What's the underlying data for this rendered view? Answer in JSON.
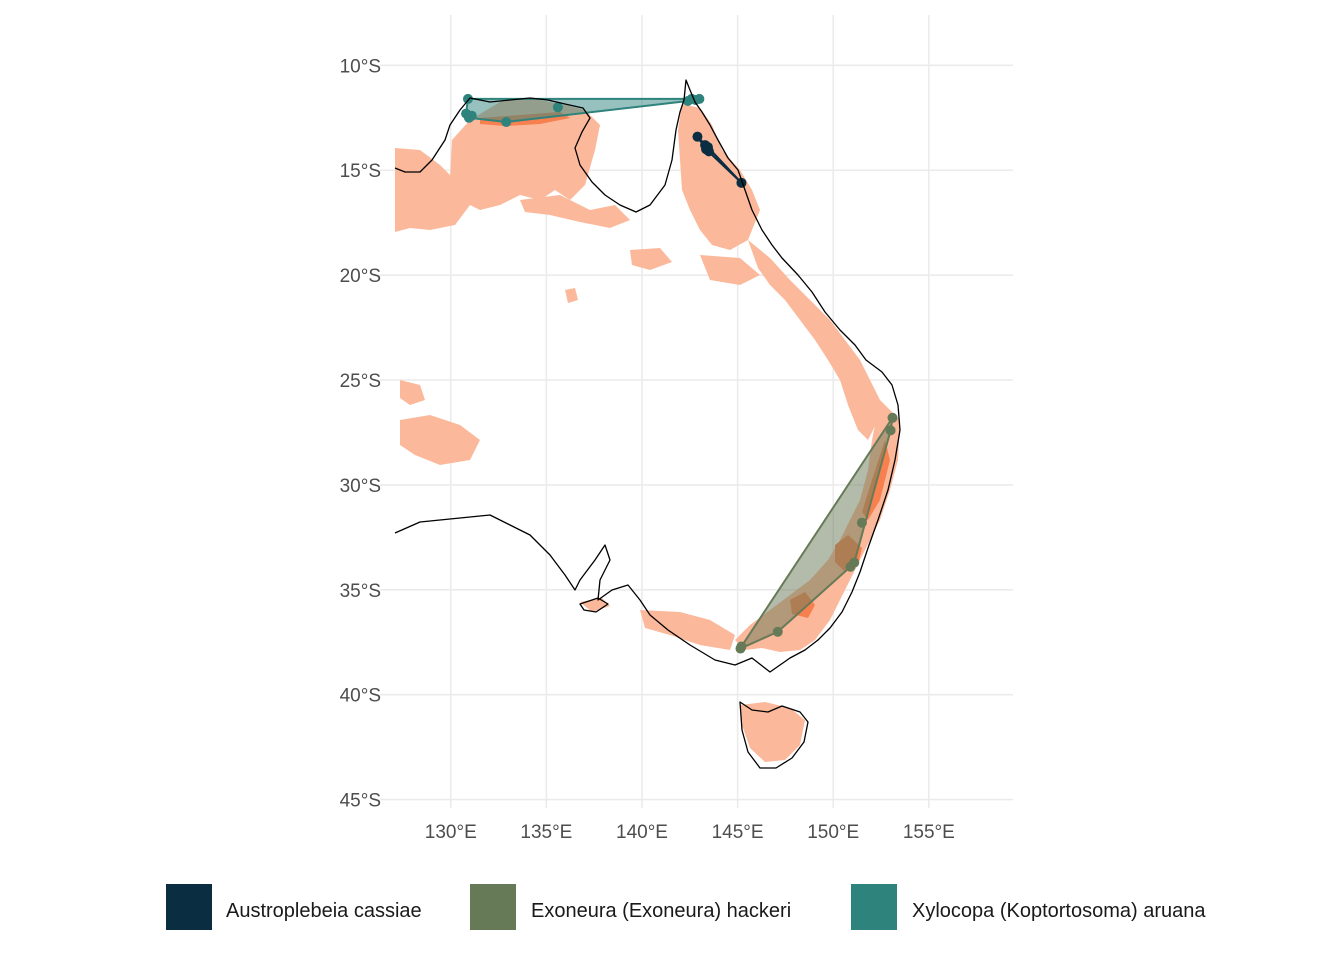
{
  "map": {
    "extent": {
      "lon_min": 126.3,
      "lon_max": 159.4,
      "lat_min": -45.4,
      "lat_max": -7.6
    },
    "x_ticks": [
      {
        "value": 130,
        "label": "130°E"
      },
      {
        "value": 135,
        "label": "135°E"
      },
      {
        "value": 140,
        "label": "140°E"
      },
      {
        "value": 145,
        "label": "145°E"
      },
      {
        "value": 150,
        "label": "150°E"
      },
      {
        "value": 155,
        "label": "155°E"
      }
    ],
    "y_ticks": [
      {
        "value": -10,
        "label": "10°S"
      },
      {
        "value": -15,
        "label": "15°S"
      },
      {
        "value": -20,
        "label": "20°S"
      },
      {
        "value": -25,
        "label": "25°S"
      },
      {
        "value": -30,
        "label": "30°S"
      },
      {
        "value": -35,
        "label": "35°S"
      },
      {
        "value": -40,
        "label": "40°S"
      },
      {
        "value": -45,
        "label": "45°S"
      }
    ],
    "grid": true,
    "legend_position": "bottom",
    "colors": {
      "habitat": "#fbb89a",
      "overlap": "#f7804f",
      "coastline": "#000000",
      "gridline": "#ebebeb"
    }
  },
  "legend": {
    "items": [
      {
        "label": "Austroplebeia cassiae",
        "color": "#0b2d42"
      },
      {
        "label": "Exoneura (Exoneura) hackeri",
        "color": "#677a58"
      },
      {
        "label": "Xylocopa (Koptortosoma) aruana",
        "color": "#2e837d"
      }
    ]
  },
  "species": [
    {
      "name": "Austroplebeia cassiae",
      "color": "#0b2d42",
      "points": [
        [
          142.9,
          -13.4
        ],
        [
          143.3,
          -13.8
        ],
        [
          143.35,
          -14.0
        ],
        [
          143.5,
          -14.1
        ],
        [
          143.45,
          -13.9
        ],
        [
          145.2,
          -15.6
        ]
      ]
    },
    {
      "name": "Exoneura (Exoneura) hackeri",
      "color": "#677a58",
      "points": [
        [
          153.1,
          -26.8
        ],
        [
          153.0,
          -27.4
        ],
        [
          151.5,
          -31.8
        ],
        [
          151.1,
          -33.7
        ],
        [
          150.9,
          -33.9
        ],
        [
          147.1,
          -37.0
        ],
        [
          145.2,
          -37.7
        ],
        [
          145.15,
          -37.8
        ]
      ]
    },
    {
      "name": "Xylocopa (Koptortosoma) aruana",
      "color": "#2e837d",
      "points": [
        [
          130.9,
          -11.6
        ],
        [
          130.8,
          -12.3
        ],
        [
          131.1,
          -12.4
        ],
        [
          130.95,
          -12.5
        ],
        [
          132.9,
          -12.7
        ],
        [
          135.6,
          -12.0
        ],
        [
          142.4,
          -11.7
        ],
        [
          142.6,
          -11.6
        ],
        [
          142.8,
          -11.65
        ],
        [
          143.0,
          -11.6
        ]
      ]
    }
  ]
}
